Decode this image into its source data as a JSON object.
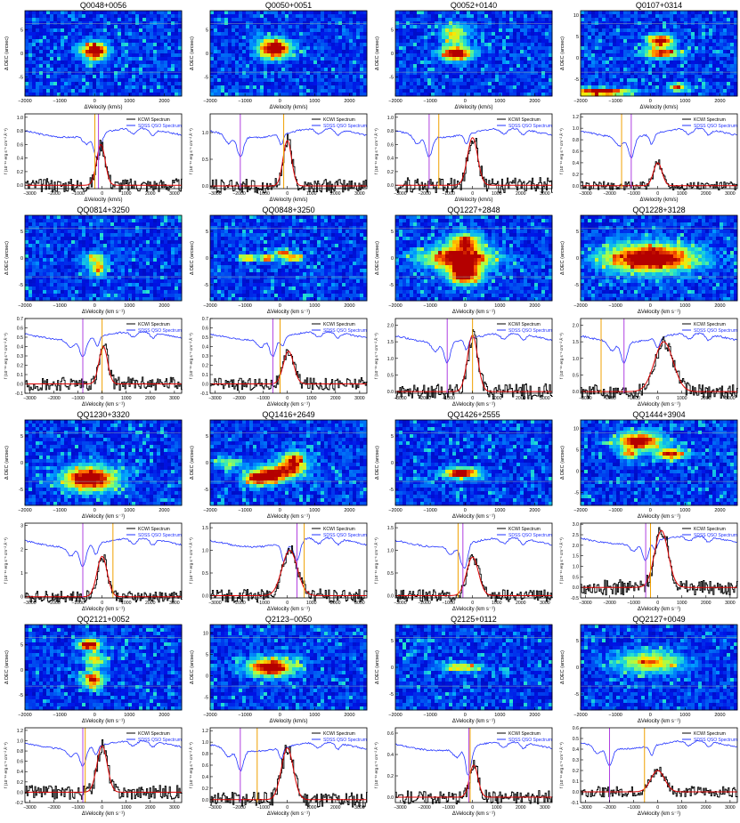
{
  "figure": {
    "map_ylabel": "Δ DEC (arcsec)",
    "spec_ylabel": "f",
    "spec_ylabel_full": "f (10⁻¹⁶ erg s⁻¹ cm⁻² Å⁻¹)",
    "legend": [
      "KCWI Spectrum",
      "SDSS QSO Spectrum"
    ],
    "colors": {
      "kcwi": "#000000",
      "sdss": "#2233ff",
      "fit": "#dd0000",
      "purple": "#b040e0",
      "orange": "#f0a000"
    },
    "map_xticks": [
      "−2000",
      "−1000",
      "0",
      "1000",
      "2000"
    ],
    "spec_xticks": [
      "−3000",
      "−2000",
      "−1000",
      "0",
      "1000",
      "2000",
      "3000"
    ]
  },
  "panels": [
    {
      "name": "Q0048+0056",
      "map_xlabel": "ΔVelocity (km/s)",
      "spec_xlabel": "ΔVelocity (km/s)",
      "map_yticks": [
        "-5",
        "0",
        "5"
      ],
      "map_yrange": [
        -9,
        9
      ],
      "spec_yticks": [
        "0.0",
        "0.2",
        "0.4",
        "0.6",
        "0.8",
        "1.0"
      ],
      "spec_ymax": 1.05,
      "peak_v": -50,
      "peak_amp": 0.6,
      "width": 250,
      "purple": -150,
      "orange": -300,
      "blobs": [
        [
          0,
          0.5,
          0.08,
          0.1,
          1.0
        ]
      ]
    },
    {
      "name": "Q0050+0051",
      "map_xlabel": "ΔVelocity (km/s)",
      "spec_xlabel": "ΔVelocity (km/s)",
      "map_yticks": [
        "-5",
        "0",
        "5"
      ],
      "map_yrange": [
        -9,
        9
      ],
      "spec_yticks": [
        "0.0",
        "0.5",
        "1.0"
      ],
      "spec_ymax": 1.35,
      "peak_v": 0,
      "peak_amp": 0.85,
      "width": 250,
      "purple": -1950,
      "orange": -150,
      "blobs": [
        [
          -150,
          1.0,
          0.1,
          0.11,
          1.0
        ]
      ]
    },
    {
      "name": "Q0052+0140",
      "map_xlabel": "ΔVelocity (km/s)",
      "spec_xlabel": "ΔVelocity (km/s)",
      "map_yticks": [
        "-5",
        "0",
        "5"
      ],
      "map_yrange": [
        -9,
        9
      ],
      "spec_yticks": [
        "0.0",
        "0.2",
        "0.4",
        "0.6",
        "0.8",
        "1.0"
      ],
      "spec_ymax": 1.05,
      "peak_v": 0,
      "peak_amp": 0.7,
      "width": 300,
      "purple": -1800,
      "orange": -1400,
      "blobs": [
        [
          -250,
          0,
          0.1,
          0.08,
          0.95
        ],
        [
          -300,
          4,
          0.08,
          0.12,
          0.55
        ]
      ]
    },
    {
      "name": "Q0107+0314",
      "map_xlabel": "ΔVelocity (km/s)",
      "spec_xlabel": "ΔVelocity (km/s)",
      "map_yticks": [
        "-5",
        "0",
        "5",
        "10"
      ],
      "map_yrange": [
        -9,
        11
      ],
      "spec_yticks": [
        "0.0",
        "0.2",
        "0.4",
        "0.6",
        "0.8",
        "1.0",
        "1.2"
      ],
      "spec_ymax": 1.25,
      "peak_v": 0,
      "peak_amp": 0.4,
      "width": 250,
      "purple": -1100,
      "orange": -1500,
      "blobs": [
        [
          -1400,
          -8,
          0.18,
          0.04,
          1.0
        ],
        [
          300,
          4,
          0.08,
          0.07,
          0.85
        ],
        [
          300,
          1,
          0.12,
          0.06,
          0.75
        ],
        [
          800,
          -7,
          0.05,
          0.05,
          0.7
        ]
      ]
    },
    {
      "name": "QQ0814+3250",
      "map_xlabel": "ΔVelocity (km s⁻¹)",
      "spec_xlabel": "ΔVelocity (km s⁻¹)",
      "map_yticks": [
        "-5",
        "0",
        "5"
      ],
      "map_yrange": [
        -8,
        8
      ],
      "spec_yticks": [
        "-0.1",
        "0.0",
        "0.1",
        "0.2",
        "0.3",
        "0.4",
        "0.5",
        "0.6",
        "0.7"
      ],
      "spec_ymax": 0.7,
      "peak_v": 50,
      "peak_amp": 0.4,
      "width": 250,
      "purple": -800,
      "orange": 0,
      "blobs": [
        [
          100,
          -2,
          0.05,
          0.08,
          0.6
        ],
        [
          0,
          0,
          0.07,
          0.06,
          0.45
        ]
      ]
    },
    {
      "name": "QQ0848+3250",
      "map_xlabel": "ΔVelocity (km s⁻¹)",
      "spec_xlabel": "ΔVelocity (km s⁻¹)",
      "map_yticks": [
        "-5",
        "0",
        "5"
      ],
      "map_yrange": [
        -8,
        8
      ],
      "spec_yticks": [
        "-0.1",
        "0.0",
        "0.1",
        "0.2",
        "0.3",
        "0.4",
        "0.5",
        "0.6",
        "0.7"
      ],
      "spec_ymax": 0.7,
      "peak_v": 50,
      "peak_amp": 0.35,
      "width": 300,
      "purple": -600,
      "orange": -300,
      "blobs": [
        [
          -900,
          0,
          0.05,
          0.04,
          0.7
        ],
        [
          -350,
          0,
          0.05,
          0.04,
          0.75
        ],
        [
          100,
          1,
          0.05,
          0.04,
          0.7
        ],
        [
          400,
          0,
          0.06,
          0.04,
          0.7
        ]
      ]
    },
    {
      "name": "QQ1227+2848",
      "map_xlabel": "ΔVelocity (km s⁻¹)",
      "spec_xlabel": "ΔVelocity (km s⁻¹)",
      "map_yticks": [
        "-5",
        "0",
        "5"
      ],
      "map_yrange": [
        -8,
        8
      ],
      "spec_yticks": [
        "0.0",
        "0.5",
        "1.0",
        "1.5",
        "2.0"
      ],
      "spec_ymax": 2.2,
      "peak_v": 0,
      "peak_amp": 1.7,
      "width": 300,
      "purple": -1050,
      "orange": 0,
      "blobs": [
        [
          -200,
          0,
          0.22,
          0.12,
          0.9
        ],
        [
          0,
          -3,
          0.1,
          0.12,
          0.95
        ],
        [
          0,
          3,
          0.1,
          0.1,
          0.7
        ]
      ]
    },
    {
      "name": "QQ1228+3128",
      "map_xlabel": "ΔVelocity (km s⁻¹)",
      "spec_xlabel": "ΔVelocity (km s⁻¹)",
      "map_yticks": [
        "-5",
        "0",
        "5"
      ],
      "map_yrange": [
        -8,
        8
      ],
      "spec_yticks": [
        "0.0",
        "0.5",
        "1.0",
        "1.5",
        "2.0"
      ],
      "spec_ymax": 2.2,
      "peak_v": 250,
      "peak_amp": 1.5,
      "width": 550,
      "purple": -1400,
      "orange": -2350,
      "blobs": [
        [
          0,
          0,
          0.28,
          0.16,
          1.0
        ]
      ]
    },
    {
      "name": "QQ1230+3320",
      "map_xlabel": "ΔVelocity (km s⁻¹)",
      "spec_xlabel": "ΔVelocity (km s⁻¹)",
      "map_yticks": [
        "-5",
        "0",
        "5"
      ],
      "map_yrange": [
        -8,
        8
      ],
      "spec_yticks": [
        "0",
        "1",
        "2",
        "3"
      ],
      "spec_ymax": 3.1,
      "peak_v": 0,
      "peak_amp": 1.7,
      "width": 300,
      "purple": -800,
      "orange": 450,
      "blobs": [
        [
          -150,
          -3,
          0.16,
          0.14,
          1.0
        ]
      ]
    },
    {
      "name": "QQ1416+2649",
      "map_xlabel": "ΔVelocity (km s⁻¹)",
      "spec_xlabel": "ΔVelocity (km s⁻¹)",
      "map_yticks": [
        "-5",
        "0",
        "5"
      ],
      "map_yrange": [
        -8,
        8
      ],
      "spec_yticks": [
        "0.0",
        "0.5",
        "1.0",
        "1.5"
      ],
      "spec_ymax": 1.6,
      "peak_v": 100,
      "peak_amp": 1.0,
      "width": 450,
      "purple": 400,
      "orange": 700,
      "blobs": [
        [
          -600,
          -3,
          0.1,
          0.08,
          0.8
        ],
        [
          -100,
          -2,
          0.12,
          0.1,
          0.7
        ],
        [
          400,
          0,
          0.08,
          0.12,
          0.75
        ],
        [
          -1500,
          0,
          0.08,
          0.06,
          0.4
        ]
      ]
    },
    {
      "name": "QQ1426+2555",
      "map_xlabel": "ΔVelocity (km s⁻¹)",
      "spec_xlabel": "ΔVelocity (km s⁻¹)",
      "map_yticks": [
        "-5",
        "0",
        "5"
      ],
      "map_yrange": [
        -8,
        8
      ],
      "spec_yticks": [
        "0.0",
        "0.5",
        "1.0",
        "1.5"
      ],
      "spec_ymax": 1.6,
      "peak_v": 0,
      "peak_amp": 0.85,
      "width": 350,
      "purple": -400,
      "orange": -600,
      "blobs": [
        [
          -100,
          -2,
          0.11,
          0.06,
          0.95
        ]
      ]
    },
    {
      "name": "QQ1444+3904",
      "map_xlabel": "ΔVelocity (km s⁻¹)",
      "spec_xlabel": "ΔVelocity (km s⁻¹)",
      "map_yticks": [
        "-5",
        "0",
        "5",
        "10"
      ],
      "map_yrange": [
        -8,
        12
      ],
      "spec_yticks": [
        "-0.5",
        "0.0",
        "0.5",
        "1.0",
        "1.5",
        "2.0",
        "2.5",
        "3.0"
      ],
      "spec_ymax": 3.05,
      "peak_v": 150,
      "peak_amp": 2.7,
      "width": 400,
      "purple": -500,
      "orange": -300,
      "blobs": [
        [
          -300,
          7,
          0.14,
          0.1,
          0.9
        ],
        [
          600,
          4,
          0.1,
          0.06,
          0.8
        ],
        [
          -600,
          4,
          0.05,
          0.06,
          0.6
        ]
      ]
    },
    {
      "name": "QQ2121+0052",
      "map_xlabel": "ΔVelocity (km s⁻¹)",
      "spec_xlabel": "ΔVelocity (km s⁻¹)",
      "map_yticks": [
        "-5",
        "0",
        "5"
      ],
      "map_yrange": [
        -8,
        9
      ],
      "spec_yticks": [
        "-0.2",
        "0.0",
        "0.2",
        "0.4",
        "0.6",
        "0.8",
        "1.0",
        "1.2"
      ],
      "spec_ymax": 1.25,
      "peak_v": 0,
      "peak_amp": 0.9,
      "width": 300,
      "purple": -800,
      "orange": -700,
      "blobs": [
        [
          -150,
          5,
          0.07,
          0.06,
          1.0
        ],
        [
          0,
          2,
          0.07,
          0.07,
          0.6
        ],
        [
          -50,
          -2,
          0.06,
          0.1,
          0.8
        ]
      ]
    },
    {
      "name": "Q2123−0050",
      "map_xlabel": "ΔVelocity (km/s)",
      "spec_xlabel": "ΔVelocity (km s⁻¹)",
      "map_yticks": [
        "-5",
        "0",
        "5",
        "10"
      ],
      "map_yrange": [
        -8,
        12
      ],
      "spec_yticks": [
        "0.0",
        "0.2",
        "0.4",
        "0.6",
        "0.8",
        "1.0",
        "1.2"
      ],
      "spec_ymax": 1.25,
      "peak_v": 0,
      "peak_amp": 0.9,
      "width": 350,
      "purple": -1950,
      "orange": -1250,
      "blobs": [
        [
          -250,
          2,
          0.14,
          0.1,
          1.0
        ]
      ]
    },
    {
      "name": "Q2125+0112",
      "map_xlabel": "ΔVelocity (km s⁻¹)",
      "spec_xlabel": "ΔVelocity (km s⁻¹)",
      "map_yticks": [
        "-5",
        "0",
        "5"
      ],
      "map_yrange": [
        -8,
        8
      ],
      "spec_yticks": [
        "0.0",
        "0.2",
        "0.4",
        "0.6"
      ],
      "spec_ymax": 0.65,
      "peak_v": 50,
      "peak_amp": 0.3,
      "width": 250,
      "purple": -150,
      "orange": -100,
      "blobs": [
        [
          -100,
          0,
          0.12,
          0.05,
          0.6
        ]
      ]
    },
    {
      "name": "QQ2127+0049",
      "map_xlabel": "ΔVelocity (km s⁻¹)",
      "spec_xlabel": "ΔVelocity (km s⁻¹)",
      "map_yticks": [
        "-5",
        "0",
        "5"
      ],
      "map_yrange": [
        -8,
        8
      ],
      "spec_yticks": [
        "-0.1",
        "0.0",
        "0.1",
        "0.2",
        "0.3",
        "0.4",
        "0.5",
        "0.6"
      ],
      "spec_ymax": 0.6,
      "peak_v": 0,
      "peak_amp": 0.2,
      "width": 400,
      "purple": -2000,
      "orange": -550,
      "blobs": [
        [
          0,
          1,
          0.2,
          0.12,
          0.6
        ]
      ]
    }
  ]
}
